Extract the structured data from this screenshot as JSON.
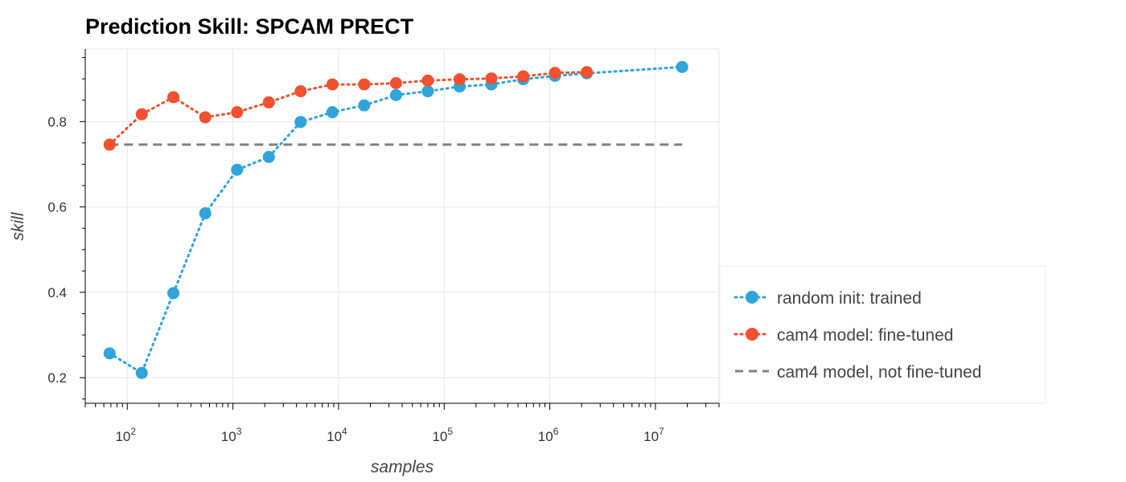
{
  "chart_data": {
    "type": "line",
    "title": "Prediction Skill: SPCAM PRECT",
    "xlabel": "samples",
    "ylabel": "skill",
    "xscale": "log",
    "xlim": [
      40,
      40000000
    ],
    "ylim": [
      0.14,
      0.97
    ],
    "x_ticks": [
      {
        "value": 100,
        "base": "10",
        "exp": "2"
      },
      {
        "value": 1000,
        "base": "10",
        "exp": "3"
      },
      {
        "value": 10000,
        "base": "10",
        "exp": "4"
      },
      {
        "value": 100000,
        "base": "10",
        "exp": "5"
      },
      {
        "value": 1000000,
        "base": "10",
        "exp": "6"
      },
      {
        "value": 10000000,
        "base": "10",
        "exp": "7"
      }
    ],
    "y_ticks": [
      "0.2",
      "0.4",
      "0.6",
      "0.8"
    ],
    "grid": true,
    "legend_position": "right",
    "series": [
      {
        "name": "random init: trained",
        "color": "#2fa4dc",
        "style": "dotted-with-markers",
        "x": [
          68,
          137,
          273,
          547,
          1094,
          2188,
          4375,
          8750,
          17500,
          35000,
          70000,
          140000,
          280000,
          560000,
          1120000,
          2240000,
          17900000
        ],
        "y": [
          0.257,
          0.211,
          0.398,
          0.585,
          0.687,
          0.717,
          0.799,
          0.822,
          0.838,
          0.862,
          0.871,
          0.882,
          0.887,
          0.899,
          0.907,
          0.913,
          0.928
        ]
      },
      {
        "name": "cam4 model: fine-tuned",
        "color": "#f2502e",
        "style": "dotted-with-markers",
        "x": [
          68,
          137,
          273,
          547,
          1094,
          2188,
          4375,
          8750,
          17500,
          35000,
          70000,
          140000,
          280000,
          560000,
          1120000,
          2240000
        ],
        "y": [
          0.746,
          0.817,
          0.857,
          0.81,
          0.822,
          0.845,
          0.871,
          0.887,
          0.887,
          0.89,
          0.896,
          0.899,
          0.901,
          0.906,
          0.914,
          0.916
        ]
      },
      {
        "name": "cam4 model, not fine-tuned",
        "color": "#808080",
        "style": "dashed",
        "x": [
          68,
          17900000
        ],
        "y": [
          0.746,
          0.746
        ]
      }
    ]
  }
}
